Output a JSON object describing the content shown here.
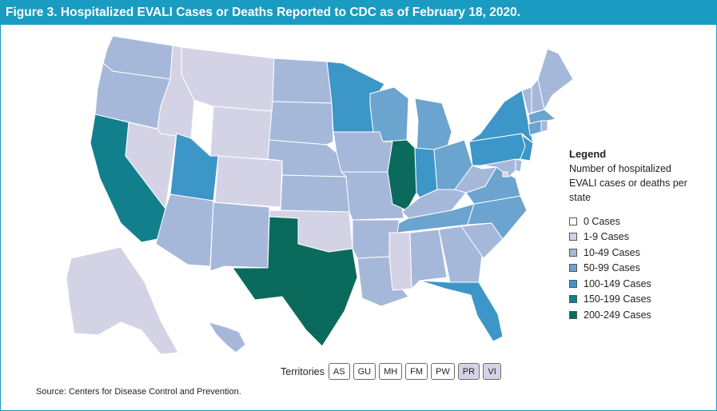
{
  "header": {
    "title": "Figure 3. Hospitalized EVALI Cases or Deaths Reported to CDC as of February 18, 2020."
  },
  "legend": {
    "title": "Legend",
    "subtitle": "Number of hospitalized EVALI cases or deaths per state",
    "items": [
      {
        "label": "0 Cases",
        "color": "#ffffff"
      },
      {
        "label": "1-9 Cases",
        "color": "#d4d3e6"
      },
      {
        "label": "10-49 Cases",
        "color": "#a6b8da"
      },
      {
        "label": "50-99 Cases",
        "color": "#6aa4cf"
      },
      {
        "label": "100-149 Cases",
        "color": "#3d96c8"
      },
      {
        "label": "150-199 Cases",
        "color": "#127f8d"
      },
      {
        "label": "200-249 Cases",
        "color": "#0a6b5d"
      }
    ]
  },
  "territories": {
    "label": "Territories",
    "items": [
      {
        "code": "AS",
        "category": "0 Cases",
        "color": "#ffffff"
      },
      {
        "code": "GU",
        "category": "0 Cases",
        "color": "#ffffff"
      },
      {
        "code": "MH",
        "category": "0 Cases",
        "color": "#ffffff"
      },
      {
        "code": "FM",
        "category": "0 Cases",
        "color": "#ffffff"
      },
      {
        "code": "PW",
        "category": "0 Cases",
        "color": "#ffffff"
      },
      {
        "code": "PR",
        "category": "1-9 Cases",
        "color": "#d4d3e6"
      },
      {
        "code": "VI",
        "category": "1-9 Cases",
        "color": "#d4d3e6"
      }
    ]
  },
  "source": "Source: Centers for Disease Control and Prevention.",
  "states": {
    "WA": "10-49 Cases",
    "OR": "10-49 Cases",
    "CA": "150-199 Cases",
    "NV": "1-9 Cases",
    "ID": "1-9 Cases",
    "MT": "1-9 Cases",
    "WY": "1-9 Cases",
    "UT": "100-149 Cases",
    "AZ": "10-49 Cases",
    "CO": "1-9 Cases",
    "NM": "10-49 Cases",
    "ND": "10-49 Cases",
    "SD": "10-49 Cases",
    "NE": "10-49 Cases",
    "KS": "10-49 Cases",
    "OK": "1-9 Cases",
    "TX": "200-249 Cases",
    "MN": "100-149 Cases",
    "IA": "10-49 Cases",
    "MO": "10-49 Cases",
    "AR": "10-49 Cases",
    "LA": "10-49 Cases",
    "WI": "50-99 Cases",
    "IL": "200-249 Cases",
    "MS": "1-9 Cases",
    "MI": "50-99 Cases",
    "IN": "100-149 Cases",
    "OH": "50-99 Cases",
    "KY": "10-49 Cases",
    "TN": "50-99 Cases",
    "AL": "10-49 Cases",
    "GA": "10-49 Cases",
    "FL": "100-149 Cases",
    "SC": "10-49 Cases",
    "NC": "50-99 Cases",
    "VA": "50-99 Cases",
    "WV": "10-49 Cases",
    "PA": "100-149 Cases",
    "NY": "100-149 Cases",
    "VT": "10-49 Cases",
    "NH": "10-49 Cases",
    "ME": "10-49 Cases",
    "MA": "50-99 Cases",
    "CT": "50-99 Cases",
    "RI": "10-49 Cases",
    "NJ": "100-149 Cases",
    "DE": "10-49 Cases",
    "MD": "10-49 Cases",
    "DC": "1-9 Cases",
    "AK": "1-9 Cases",
    "HI": "10-49 Cases"
  }
}
